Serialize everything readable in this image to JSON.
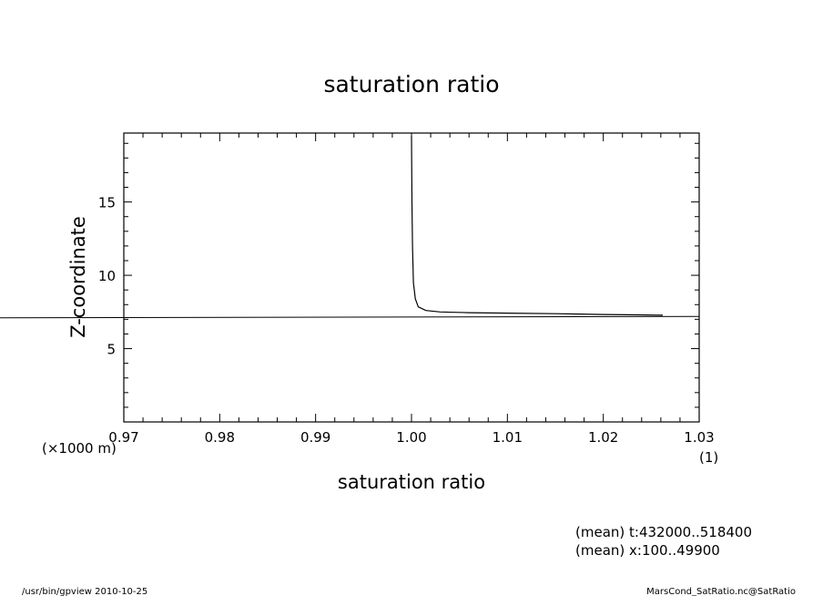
{
  "chart_data": {
    "type": "line",
    "title": "saturation ratio",
    "xlabel": "saturation ratio",
    "ylabel": "Z-coordinate",
    "xlim": [
      0.97,
      1.03
    ],
    "ylim": [
      0,
      19.7
    ],
    "x_unit": "(1)",
    "y_unit": "(×1000 m)",
    "x_ticks": [
      "0.97",
      "0.98",
      "0.99",
      "1.00",
      "1.01",
      "1.02",
      "1.03"
    ],
    "y_ticks": [
      "5",
      "10",
      "15"
    ],
    "series": [
      {
        "x": [
          1.0,
          1.00005,
          1.0001,
          1.0002,
          1.0004,
          1.0007,
          1.0015,
          1.003,
          1.006,
          1.01,
          1.015,
          1.02,
          1.0235,
          1.0262
        ],
        "y": [
          19.5,
          15.0,
          12.0,
          9.5,
          8.4,
          7.85,
          7.6,
          7.5,
          7.45,
          7.42,
          7.38,
          7.33,
          7.3,
          7.28
        ]
      }
    ],
    "horizontal_line_y": 7.1
  },
  "annotations": {
    "mean_t": "(mean) t:432000..518400",
    "mean_x": "(mean) x:100..49900",
    "footer_left": "/usr/bin/gpview  2010-10-25",
    "footer_right": "MarsCond_SatRatio.nc@SatRatio"
  },
  "colors": {
    "line": "#000000",
    "background": "#ffffff"
  }
}
